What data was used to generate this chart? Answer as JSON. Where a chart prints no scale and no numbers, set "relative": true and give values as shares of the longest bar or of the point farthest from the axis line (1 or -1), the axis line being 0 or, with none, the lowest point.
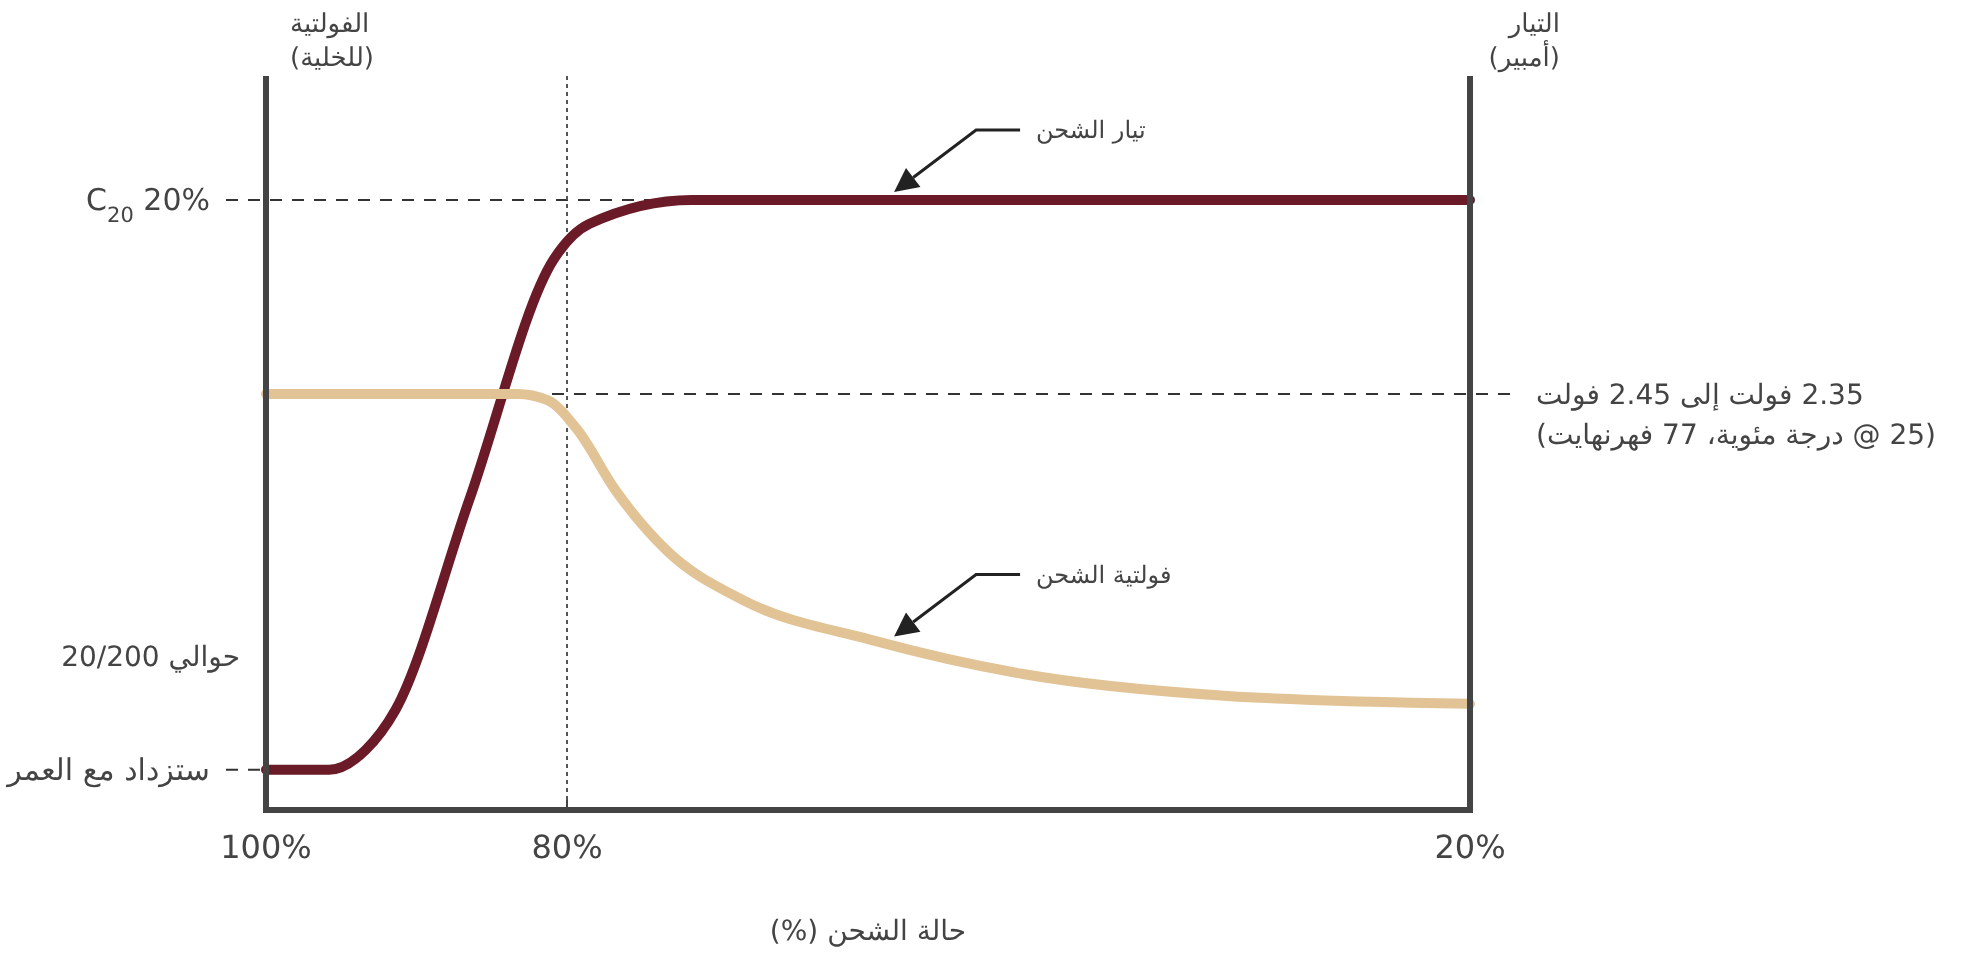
{
  "chart_data": {
    "type": "line",
    "relative": true,
    "xlabel": "حالة الشحن (%)",
    "ylabel": "الفولتية\n(للخلية)",
    "y2label": "التيار\n(أمبير)",
    "xlim": [
      100,
      20
    ],
    "xticks": [
      {
        "value": 100,
        "label": "100%"
      },
      {
        "value": 80,
        "label": "80%"
      },
      {
        "value": 20,
        "label": "20%"
      }
    ],
    "series": [
      {
        "color": "#6b1a28",
        "x": [
          100,
          95.8,
          93.4,
          91.4,
          86.5,
          80.9,
          78.5,
          71.7,
          20
        ],
        "values": [
          0.066,
          0.066,
          0.098,
          0.164,
          0.508,
          0.902,
          0.961,
          1,
          1
        ]
      },
      {
        "color": "#e2c395",
        "x": [
          100,
          83.3,
          81.3,
          79.3,
          76.8,
          73.4,
          68.3,
          59.8,
          49.7,
          36.1,
          20
        ],
        "values": [
          0.682,
          0.682,
          0.672,
          0.623,
          0.525,
          0.426,
          0.344,
          0.279,
          0.223,
          0.187,
          0.174
        ]
      }
    ],
    "ref_lines": [
      {
        "axis": "y",
        "value": 1,
        "label": "C$_{20}$ 20%",
        "line_style": "dashed"
      },
      {
        "axis": "y",
        "value": 0.066,
        "label": "ستزداد مع العمر",
        "line_style": "dashed"
      },
      {
        "axis": "y",
        "value": 0.682,
        "label": "2.35 فولت إلى 2.45 فولت\n(25 @ درجة مئوية، 77 فهرنهايت)",
        "line_style": "dashed"
      },
      {
        "axis": "x",
        "value": 80,
        "line_style": "dotted"
      }
    ],
    "annotations": [
      "تيار الشحن",
      "فولتية الشحن",
      "حوالي 20/200"
    ],
    "grid": false,
    "line_style": "solid",
    "marker": "none"
  }
}
